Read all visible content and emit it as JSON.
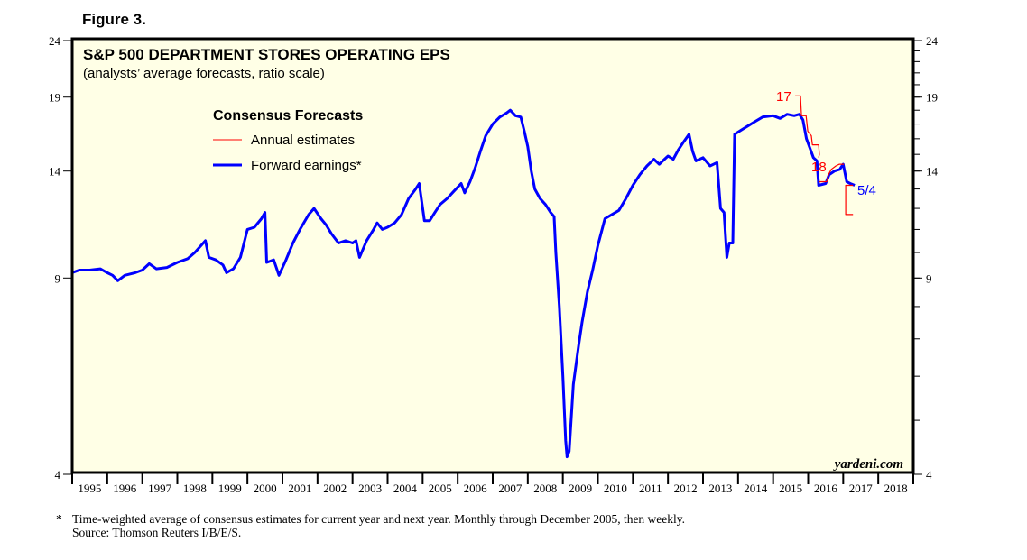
{
  "figure_label": "Figure 3.",
  "chart_data": {
    "type": "line",
    "title": "S&P 500 DEPARTMENT STORES OPERATING EPS",
    "subtitle": "(analysts’ average forecasts, ratio scale)",
    "scale": "log",
    "ylim": [
      4,
      24
    ],
    "xlim": [
      1995,
      2019
    ],
    "y_ticks": [
      24,
      19,
      14,
      9,
      4
    ],
    "x_tick_labels": [
      "1995",
      "1996",
      "1997",
      "1998",
      "1999",
      "2000",
      "2001",
      "2002",
      "2003",
      "2004",
      "2005",
      "2006",
      "2007",
      "2008",
      "2009",
      "2010",
      "2011",
      "2012",
      "2013",
      "2014",
      "2015",
      "2016",
      "2017",
      "2018"
    ],
    "legend": {
      "title": "Consensus Forecasts",
      "position": "top-left",
      "entries": [
        "Annual estimates",
        "Forward earnings*"
      ]
    },
    "watermark": "yardeni.com",
    "colors": {
      "forward": "#0000ff",
      "annual": "#ff0000",
      "background": "#ffffe6"
    },
    "series": [
      {
        "name": "Forward earnings*",
        "color": "#0000ff",
        "end_label": "5/4",
        "points": [
          [
            1995.0,
            9.2
          ],
          [
            1995.2,
            9.3
          ],
          [
            1995.5,
            9.3
          ],
          [
            1995.8,
            9.35
          ],
          [
            1996.0,
            9.2
          ],
          [
            1996.15,
            9.1
          ],
          [
            1996.3,
            8.9
          ],
          [
            1996.5,
            9.1
          ],
          [
            1996.8,
            9.2
          ],
          [
            1997.0,
            9.3
          ],
          [
            1997.2,
            9.55
          ],
          [
            1997.4,
            9.35
          ],
          [
            1997.7,
            9.4
          ],
          [
            1998.0,
            9.6
          ],
          [
            1998.3,
            9.75
          ],
          [
            1998.5,
            10.0
          ],
          [
            1998.8,
            10.5
          ],
          [
            1998.9,
            9.8
          ],
          [
            1999.1,
            9.7
          ],
          [
            1999.3,
            9.5
          ],
          [
            1999.4,
            9.2
          ],
          [
            1999.6,
            9.35
          ],
          [
            1999.8,
            9.8
          ],
          [
            2000.0,
            11.0
          ],
          [
            2000.2,
            11.1
          ],
          [
            2000.4,
            11.5
          ],
          [
            2000.5,
            11.8
          ],
          [
            2000.55,
            9.6
          ],
          [
            2000.75,
            9.7
          ],
          [
            2000.9,
            9.1
          ],
          [
            2001.1,
            9.7
          ],
          [
            2001.3,
            10.4
          ],
          [
            2001.5,
            11.0
          ],
          [
            2001.75,
            11.7
          ],
          [
            2001.9,
            12.0
          ],
          [
            2002.1,
            11.5
          ],
          [
            2002.25,
            11.2
          ],
          [
            2002.4,
            10.8
          ],
          [
            2002.6,
            10.4
          ],
          [
            2002.8,
            10.5
          ],
          [
            2003.0,
            10.4
          ],
          [
            2003.1,
            10.5
          ],
          [
            2003.2,
            9.8
          ],
          [
            2003.4,
            10.5
          ],
          [
            2003.6,
            11.0
          ],
          [
            2003.7,
            11.3
          ],
          [
            2003.85,
            11.0
          ],
          [
            2004.0,
            11.1
          ],
          [
            2004.2,
            11.3
          ],
          [
            2004.4,
            11.7
          ],
          [
            2004.6,
            12.5
          ],
          [
            2004.8,
            13.0
          ],
          [
            2004.9,
            13.3
          ],
          [
            2005.05,
            11.4
          ],
          [
            2005.2,
            11.4
          ],
          [
            2005.35,
            11.8
          ],
          [
            2005.5,
            12.2
          ],
          [
            2005.7,
            12.5
          ],
          [
            2005.9,
            12.9
          ],
          [
            2006.1,
            13.3
          ],
          [
            2006.2,
            12.8
          ],
          [
            2006.35,
            13.4
          ],
          [
            2006.5,
            14.2
          ],
          [
            2006.65,
            15.2
          ],
          [
            2006.8,
            16.2
          ],
          [
            2007.0,
            17.0
          ],
          [
            2007.2,
            17.5
          ],
          [
            2007.4,
            17.8
          ],
          [
            2007.5,
            18.0
          ],
          [
            2007.65,
            17.6
          ],
          [
            2007.8,
            17.5
          ],
          [
            2007.9,
            16.5
          ],
          [
            2008.0,
            15.5
          ],
          [
            2008.1,
            14.0
          ],
          [
            2008.2,
            13.0
          ],
          [
            2008.35,
            12.5
          ],
          [
            2008.5,
            12.2
          ],
          [
            2008.65,
            11.8
          ],
          [
            2008.75,
            11.6
          ],
          [
            2008.8,
            10.0
          ],
          [
            2008.9,
            8.0
          ],
          [
            2009.0,
            6.0
          ],
          [
            2009.08,
            4.6
          ],
          [
            2009.12,
            4.3
          ],
          [
            2009.18,
            4.4
          ],
          [
            2009.3,
            5.8
          ],
          [
            2009.45,
            6.8
          ],
          [
            2009.55,
            7.5
          ],
          [
            2009.7,
            8.5
          ],
          [
            2009.85,
            9.3
          ],
          [
            2010.0,
            10.3
          ],
          [
            2010.2,
            11.5
          ],
          [
            2010.4,
            11.7
          ],
          [
            2010.6,
            11.9
          ],
          [
            2010.8,
            12.5
          ],
          [
            2011.0,
            13.2
          ],
          [
            2011.2,
            13.8
          ],
          [
            2011.4,
            14.3
          ],
          [
            2011.6,
            14.7
          ],
          [
            2011.75,
            14.4
          ],
          [
            2011.9,
            14.7
          ],
          [
            2012.0,
            14.9
          ],
          [
            2012.15,
            14.7
          ],
          [
            2012.3,
            15.3
          ],
          [
            2012.45,
            15.8
          ],
          [
            2012.6,
            16.3
          ],
          [
            2012.7,
            15.2
          ],
          [
            2012.8,
            14.6
          ],
          [
            2013.0,
            14.8
          ],
          [
            2013.2,
            14.3
          ],
          [
            2013.4,
            14.5
          ],
          [
            2013.5,
            12.0
          ],
          [
            2013.6,
            11.8
          ],
          [
            2013.68,
            9.8
          ],
          [
            2013.75,
            10.4
          ],
          [
            2013.85,
            10.4
          ],
          [
            2013.9,
            16.3
          ],
          [
            2014.1,
            16.6
          ],
          [
            2014.3,
            16.9
          ],
          [
            2014.5,
            17.2
          ],
          [
            2014.7,
            17.5
          ],
          [
            2015.0,
            17.6
          ],
          [
            2015.2,
            17.4
          ],
          [
            2015.4,
            17.7
          ],
          [
            2015.6,
            17.6
          ],
          [
            2015.75,
            17.7
          ],
          [
            2015.85,
            17.3
          ],
          [
            2015.95,
            16.0
          ],
          [
            2016.05,
            15.4
          ],
          [
            2016.15,
            14.8
          ],
          [
            2016.25,
            14.6
          ],
          [
            2016.3,
            13.2
          ],
          [
            2016.5,
            13.3
          ],
          [
            2016.6,
            13.8
          ],
          [
            2016.75,
            14.0
          ],
          [
            2016.9,
            14.1
          ],
          [
            2017.0,
            14.4
          ],
          [
            2017.1,
            13.4
          ],
          [
            2017.2,
            13.3
          ],
          [
            2017.33,
            13.2
          ]
        ]
      },
      {
        "name": "Annual estimates 2017",
        "color": "#ff0000",
        "label": "17",
        "points": [
          [
            2015.63,
            19.1
          ],
          [
            2015.78,
            19.1
          ],
          [
            2015.81,
            17.6
          ],
          [
            2015.94,
            17.6
          ],
          [
            2015.99,
            16.5
          ],
          [
            2016.09,
            16.2
          ],
          [
            2016.12,
            15.6
          ],
          [
            2016.22,
            15.6
          ],
          [
            2016.3,
            15.6
          ],
          [
            2016.32,
            15.0
          ],
          [
            2016.3,
            14.8
          ]
        ]
      },
      {
        "name": "Annual estimates 2018",
        "color": "#ff0000",
        "label": "18",
        "points": [
          [
            2016.32,
            13.4
          ],
          [
            2016.53,
            13.4
          ],
          [
            2016.58,
            13.8
          ],
          [
            2016.66,
            14.1
          ],
          [
            2016.79,
            14.3
          ],
          [
            2016.89,
            14.4
          ],
          [
            2017.02,
            14.4
          ]
        ]
      },
      {
        "name": "Annual estimates bracket",
        "color": "#ff0000",
        "points": [
          [
            2017.28,
            13.2
          ],
          [
            2017.07,
            13.2
          ],
          [
            2017.07,
            11.7
          ],
          [
            2017.28,
            11.7
          ]
        ]
      }
    ]
  },
  "footnote": {
    "marker": "*",
    "text": "Time-weighted average of consensus estimates for current year and next year. Monthly through December 2005, then weekly.",
    "source": "Source: Thomson Reuters I/B/E/S."
  }
}
